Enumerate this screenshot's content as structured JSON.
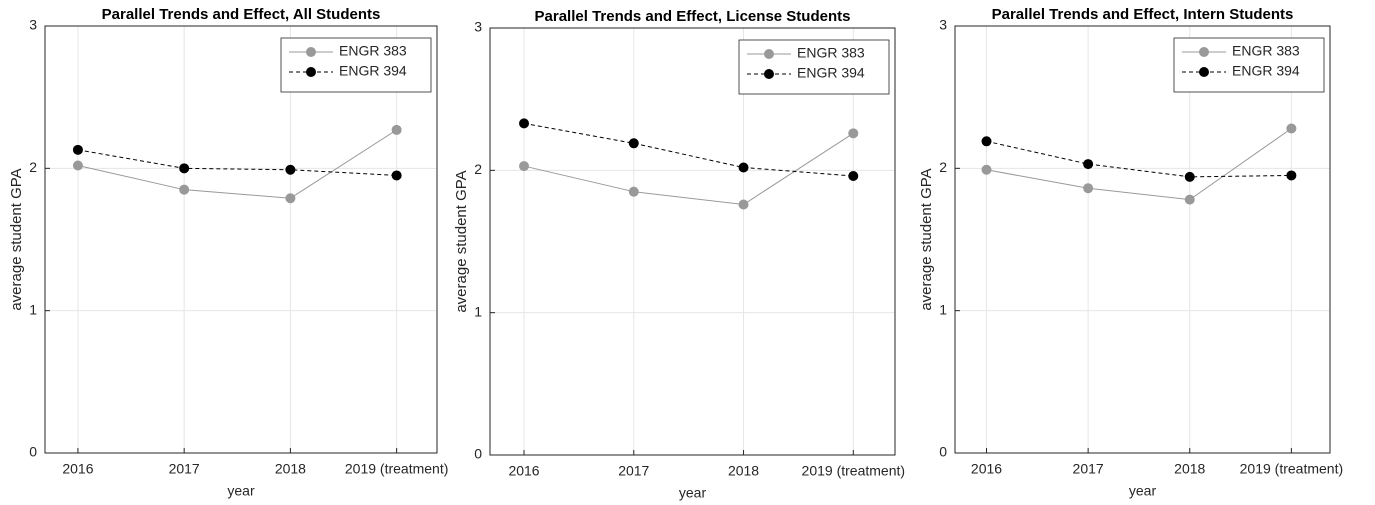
{
  "chart_data": [
    {
      "type": "line",
      "title": "Parallel Trends and Effect, All Students",
      "xlabel": "year",
      "ylabel": "average student GPA",
      "categories": [
        "2016",
        "2017",
        "2018",
        "2019 (treatment)"
      ],
      "series": [
        {
          "name": "ENGR 383",
          "color": "#999999",
          "dash": false,
          "values": [
            2.02,
            1.85,
            1.79,
            2.27
          ]
        },
        {
          "name": "ENGR 394",
          "color": "#000000",
          "dash": true,
          "values": [
            2.13,
            2.0,
            1.99,
            1.95
          ]
        }
      ],
      "ylim": [
        0,
        3
      ],
      "yticks": [
        0,
        1,
        2,
        3
      ],
      "grid": true,
      "legend": "northeast"
    },
    {
      "type": "line",
      "title": "Parallel Trends and Effect, License Students",
      "xlabel": "year",
      "ylabel": "average student GPA",
      "categories": [
        "2016",
        "2017",
        "2018",
        "2019 (treatment)"
      ],
      "series": [
        {
          "name": "ENGR 383",
          "color": "#999999",
          "dash": false,
          "values": [
            2.03,
            1.85,
            1.76,
            2.26
          ]
        },
        {
          "name": "ENGR 394",
          "color": "#000000",
          "dash": true,
          "values": [
            2.33,
            2.19,
            2.02,
            1.96
          ]
        }
      ],
      "ylim": [
        0,
        3
      ],
      "yticks": [
        0,
        1,
        2,
        3
      ],
      "grid": true,
      "legend": "northeast"
    },
    {
      "type": "line",
      "title": "Parallel Trends and Effect, Intern Students",
      "xlabel": "year",
      "ylabel": "average student GPA",
      "categories": [
        "2016",
        "2017",
        "2018",
        "2019 (treatment)"
      ],
      "series": [
        {
          "name": "ENGR 383",
          "color": "#999999",
          "dash": false,
          "values": [
            1.99,
            1.86,
            1.78,
            2.28
          ]
        },
        {
          "name": "ENGR 394",
          "color": "#000000",
          "dash": true,
          "values": [
            2.19,
            2.03,
            1.94,
            1.95
          ]
        }
      ],
      "ylim": [
        0,
        3
      ],
      "yticks": [
        0,
        1,
        2,
        3
      ],
      "grid": true,
      "legend": "northeast"
    }
  ]
}
